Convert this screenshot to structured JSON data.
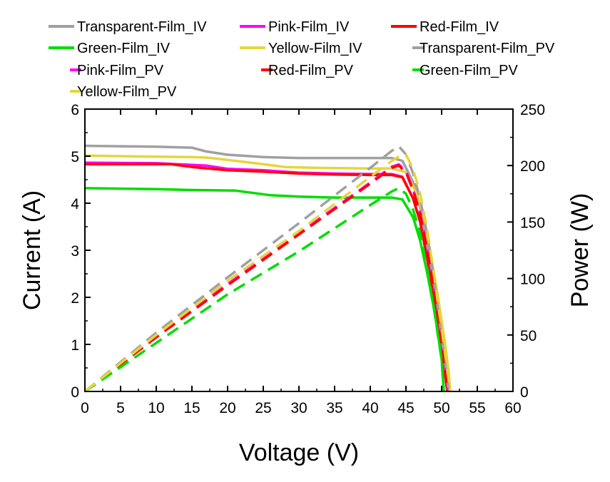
{
  "chart_data": {
    "type": "line",
    "title": "",
    "xlabel": "Voltage (V)",
    "ylabel": "Current (A)",
    "y2label": "Power (W)",
    "xlim": [
      0,
      60
    ],
    "ylim": [
      0,
      6
    ],
    "y2lim": [
      0,
      250
    ],
    "xticks": [
      "0",
      "5",
      "10",
      "15",
      "20",
      "25",
      "30",
      "35",
      "40",
      "45",
      "50",
      "55",
      "60"
    ],
    "yticks": [
      "0",
      "1",
      "2",
      "3",
      "4",
      "5",
      "6"
    ],
    "y2ticks": [
      "0",
      "50",
      "100",
      "150",
      "200",
      "250"
    ],
    "grid": false,
    "legend_position": "top",
    "series": [
      {
        "name": "Transparent-Film_IV",
        "axis": "left",
        "style": "solid",
        "color": "#a0a0a0",
        "x": [
          0,
          10,
          15,
          17,
          20,
          25,
          30,
          35,
          40,
          43,
          44.5,
          46,
          47,
          48,
          49,
          50,
          50.5,
          51
        ],
        "y": [
          5.22,
          5.2,
          5.18,
          5.1,
          5.03,
          4.98,
          4.96,
          4.96,
          4.96,
          4.96,
          4.9,
          4.45,
          3.9,
          3.1,
          2.1,
          1.0,
          0.4,
          0
        ]
      },
      {
        "name": "Pink-Film_IV",
        "axis": "left",
        "style": "solid",
        "color": "#ff00ff",
        "x": [
          0,
          10,
          17,
          20,
          25,
          30,
          35,
          40,
          43,
          44.5,
          46,
          47,
          48,
          49,
          50,
          50.5,
          50.8
        ],
        "y": [
          4.86,
          4.85,
          4.8,
          4.73,
          4.7,
          4.65,
          4.63,
          4.62,
          4.62,
          4.56,
          4.1,
          3.6,
          2.8,
          1.9,
          0.9,
          0.35,
          0
        ]
      },
      {
        "name": "Red-Film_IV",
        "axis": "left",
        "style": "solid",
        "color": "#ff0000",
        "x": [
          0,
          12,
          15,
          20,
          25,
          30,
          35,
          40,
          43,
          44.5,
          46,
          47,
          48,
          49,
          50,
          50.5,
          50.8
        ],
        "y": [
          4.83,
          4.83,
          4.77,
          4.7,
          4.67,
          4.63,
          4.61,
          4.6,
          4.6,
          4.55,
          4.1,
          3.6,
          2.8,
          1.9,
          0.9,
          0.35,
          0
        ]
      },
      {
        "name": "Green-Film_IV",
        "axis": "left",
        "style": "solid",
        "color": "#00dd00",
        "x": [
          0,
          10,
          15,
          21,
          26,
          30,
          35,
          40,
          43,
          44.5,
          46,
          47,
          48,
          49,
          50,
          50.3
        ],
        "y": [
          4.32,
          4.3,
          4.28,
          4.27,
          4.17,
          4.14,
          4.12,
          4.12,
          4.12,
          4.08,
          3.7,
          3.2,
          2.5,
          1.7,
          0.7,
          0
        ]
      },
      {
        "name": "Yellow-Film_IV",
        "axis": "left",
        "style": "solid",
        "color": "#e5d63a",
        "x": [
          0,
          10,
          15,
          17,
          20,
          25,
          28,
          33,
          40,
          43,
          45,
          46.5,
          47.5,
          48.5,
          49.5,
          50.5,
          51,
          51.2
        ],
        "y": [
          5.01,
          4.99,
          4.98,
          4.97,
          4.92,
          4.83,
          4.77,
          4.75,
          4.74,
          4.74,
          4.66,
          4.2,
          3.7,
          2.9,
          2.0,
          1.0,
          0.4,
          0
        ]
      },
      {
        "name": "Transparent-Film_PV",
        "axis": "right",
        "style": "dashed",
        "color": "#a0a0a0",
        "x": [
          0,
          10,
          20,
          30,
          40,
          43,
          44,
          45,
          46,
          47,
          48,
          49,
          50,
          51
        ],
        "y": [
          0,
          52,
          101,
          149,
          198,
          213,
          217,
          210,
          193,
          170,
          138,
          96,
          48,
          0
        ]
      },
      {
        "name": "Pink-Film_PV",
        "axis": "right",
        "style": "dashed",
        "color": "#ff00ff",
        "x": [
          0,
          10,
          20,
          30,
          40,
          43,
          44,
          45,
          46,
          47,
          48,
          49,
          50,
          50.8
        ],
        "y": [
          0,
          48,
          95,
          140,
          185,
          199,
          201,
          195,
          179,
          158,
          125,
          88,
          42,
          0
        ]
      },
      {
        "name": "Red-Film_PV",
        "axis": "right",
        "style": "dashed",
        "color": "#ff0000",
        "x": [
          0,
          10,
          20,
          30,
          40,
          43,
          44,
          45,
          46,
          47,
          48,
          49,
          50,
          50.8
        ],
        "y": [
          0,
          48,
          94,
          139,
          184,
          198,
          200,
          194,
          178,
          157,
          124,
          87,
          42,
          0
        ]
      },
      {
        "name": "Green-Film_PV",
        "axis": "right",
        "style": "dashed",
        "color": "#00dd00",
        "x": [
          0,
          10,
          20,
          30,
          40,
          43,
          44,
          45,
          46,
          47,
          48,
          49,
          50,
          50.3
        ],
        "y": [
          0,
          43,
          86,
          124,
          165,
          177,
          180,
          175,
          161,
          140,
          108,
          70,
          28,
          0
        ]
      },
      {
        "name": "Yellow-Film_PV",
        "axis": "right",
        "style": "dashed",
        "color": "#e5d63a",
        "x": [
          0,
          10,
          20,
          30,
          40,
          43,
          44,
          45,
          46,
          47,
          48,
          49,
          50,
          51,
          51.2
        ],
        "y": [
          0,
          50,
          98,
          142,
          190,
          204,
          208,
          210,
          197,
          175,
          143,
          100,
          55,
          10,
          0
        ]
      }
    ],
    "legend_order": [
      "Transparent-Film_IV",
      "Pink-Film_IV",
      "Red-Film_IV",
      "Green-Film_IV",
      "Yellow-Film_IV",
      "Transparent-Film_PV",
      "Pink-Film_PV",
      "Red-Film_PV",
      "Green-Film_PV",
      "Yellow-Film_PV"
    ]
  }
}
